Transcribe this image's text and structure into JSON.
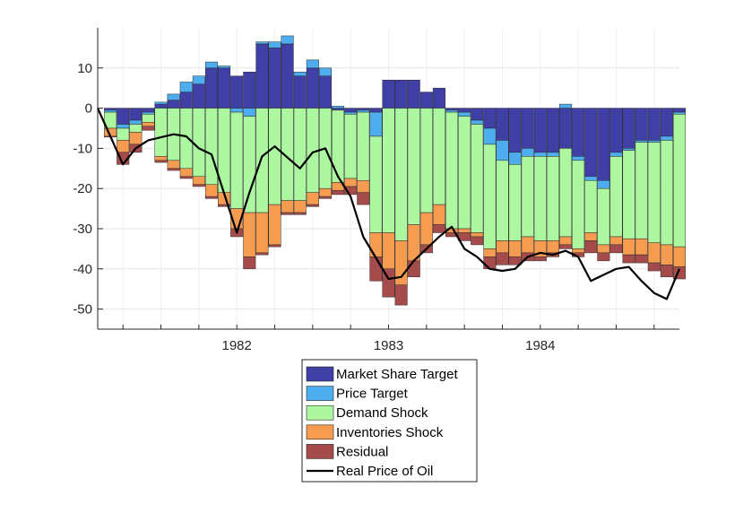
{
  "chart_data": {
    "type": "bar",
    "subtype": "stacked-with-line",
    "title": "",
    "xlabel": "",
    "ylabel": "",
    "ylim": [
      -55,
      20
    ],
    "yticks": [
      10,
      0,
      -10,
      -20,
      -30,
      -40,
      -50
    ],
    "ytick_labels": [
      "10",
      "0",
      "-10",
      "-20",
      "-30",
      "-40",
      "-50"
    ],
    "x_start": "1981-02",
    "x_end": "1984-12",
    "xticks": [
      {
        "label": "1982",
        "date": "1982-01"
      },
      {
        "label": "1983",
        "date": "1983-01"
      },
      {
        "label": "1984",
        "date": "1984-01"
      }
    ],
    "grid": true,
    "legend_position": "below",
    "dates": [
      "1981-03",
      "1981-04",
      "1981-05",
      "1981-06",
      "1981-07",
      "1981-08",
      "1981-09",
      "1981-10",
      "1981-11",
      "1981-12",
      "1982-01",
      "1982-02",
      "1982-03",
      "1982-04",
      "1982-05",
      "1982-06",
      "1982-07",
      "1982-08",
      "1982-09",
      "1982-10",
      "1982-11",
      "1982-12",
      "1983-01",
      "1983-02",
      "1983-03",
      "1983-04",
      "1983-05",
      "1983-06",
      "1983-07",
      "1983-08",
      "1983-09",
      "1983-10",
      "1983-11",
      "1983-12",
      "1984-01",
      "1984-02",
      "1984-03",
      "1984-04",
      "1984-05",
      "1984-06",
      "1984-07",
      "1984-08",
      "1984-09",
      "1984-10",
      "1984-11",
      "1984-12"
    ],
    "series": [
      {
        "name": "Market Share Target",
        "color": "#3f3fa6",
        "values": [
          -0.5,
          -4,
          -3,
          -1,
          1,
          2,
          4,
          6,
          10,
          10,
          8,
          9,
          16,
          15,
          16,
          8,
          10,
          8,
          -0.5,
          -1,
          -0.5,
          -1,
          7,
          7,
          7,
          4,
          5,
          -0.5,
          -1,
          -3,
          -5,
          -8,
          -11,
          -10,
          -11,
          -11,
          -10,
          -12,
          -17,
          -18,
          -11,
          -10,
          -8,
          -8,
          -7,
          -1
        ]
      },
      {
        "name": "Price Target",
        "color": "#4dadee",
        "values": [
          -0.5,
          -1,
          -1,
          -0.5,
          0.5,
          1.5,
          2.5,
          2,
          1.5,
          0.5,
          -1,
          -2,
          0.5,
          1.5,
          2,
          1,
          2,
          2,
          0.5,
          -0.5,
          -0.5,
          -6,
          0,
          0,
          0,
          0,
          0,
          -0.5,
          -1,
          -1,
          -4,
          -5,
          -3,
          -2,
          -1,
          -1,
          1,
          -1,
          -1,
          -2,
          -1,
          -0.5,
          -0.5,
          -0.5,
          -1,
          -0.5
        ]
      },
      {
        "name": "Demand Shock",
        "color": "#adf7a1",
        "values": [
          -4,
          -3,
          -2,
          -2,
          -12,
          -13,
          -15,
          -17,
          -19,
          -21,
          -24,
          -24,
          -26,
          -24,
          -23,
          -23,
          -21,
          -20,
          -18,
          -16,
          -17,
          -24,
          -31,
          -33,
          -29,
          -26,
          -24,
          -29,
          -28,
          -27,
          -26,
          -20,
          -19,
          -20,
          -21,
          -21,
          -22,
          -22,
          -13,
          -14,
          -20,
          -22,
          -24,
          -25,
          -26,
          -33
        ]
      },
      {
        "name": "Inventories Shock",
        "color": "#f59c51",
        "values": [
          -2,
          -3,
          -3,
          -1,
          -1,
          -2,
          -2,
          -2,
          -3,
          -3,
          -5,
          -11,
          -10,
          -10,
          -3,
          -3,
          -3,
          -2,
          -2,
          -2,
          -3,
          -6,
          -9,
          -11,
          -9,
          -8,
          -5,
          -1,
          -1,
          -1,
          -2,
          -3,
          -4,
          -4,
          -4,
          -3,
          -2,
          -1,
          -2,
          -2,
          -2,
          -4,
          -4,
          -5,
          -5,
          -5
        ]
      },
      {
        "name": "Residual",
        "color": "#a64b4b",
        "values": [
          -0.2,
          -3,
          -2,
          -1,
          -0.5,
          -0.5,
          -0.5,
          -0.5,
          -0.5,
          -0.5,
          -2,
          -3,
          -0.5,
          -0.5,
          -0.5,
          -0.5,
          -0.5,
          -0.5,
          -1,
          -2,
          -3,
          -6,
          -7,
          -5,
          -4,
          -2,
          -2,
          -1,
          -2,
          -2,
          -3,
          -3,
          -2,
          -2,
          -1,
          -1,
          -1,
          -1,
          -3,
          -2,
          -2,
          -2,
          -2,
          -2,
          -3,
          -3
        ]
      }
    ],
    "line": {
      "name": "Real Price of Oil",
      "color": "#000000",
      "x": [
        "1981-02",
        "1981-04",
        "1981-05",
        "1981-06",
        "1981-08",
        "1981-09",
        "1981-10",
        "1981-11",
        "1982-01",
        "1982-02",
        "1982-03",
        "1982-04",
        "1982-06",
        "1982-07",
        "1982-08",
        "1982-09",
        "1982-10",
        "1982-11",
        "1983-01",
        "1983-02",
        "1983-03",
        "1983-05",
        "1983-06",
        "1983-07",
        "1983-08",
        "1983-09",
        "1983-10",
        "1983-11",
        "1983-12",
        "1984-01",
        "1984-02",
        "1984-03",
        "1984-04",
        "1984-05",
        "1984-06",
        "1984-07",
        "1984-08",
        "1984-09",
        "1984-10",
        "1984-11",
        "1984-12"
      ],
      "y": [
        0,
        -14,
        -10,
        -8,
        -6.5,
        -7,
        -10,
        -11.5,
        -31,
        -21,
        -12,
        -9.5,
        -15,
        -11,
        -10,
        -17,
        -22,
        -32,
        -42.5,
        -42,
        -38,
        -32,
        -29.5,
        -35,
        -37,
        -40,
        -40.5,
        -40,
        -37,
        -36,
        -36.5,
        -35.5,
        -37,
        -43,
        -41.5,
        -40,
        -39.5,
        -43,
        -46,
        -47.5,
        -40
      ]
    }
  },
  "legend": {
    "items": [
      {
        "label": "Market Share Target",
        "kind": "patch",
        "color": "#3f3fa6"
      },
      {
        "label": "Price Target",
        "kind": "patch",
        "color": "#4dadee"
      },
      {
        "label": "Demand Shock",
        "kind": "patch",
        "color": "#adf7a1"
      },
      {
        "label": "Inventories Shock",
        "kind": "patch",
        "color": "#f59c51"
      },
      {
        "label": "Residual",
        "kind": "patch",
        "color": "#a64b4b"
      },
      {
        "label": "Real Price of Oil",
        "kind": "line",
        "color": "#000000"
      }
    ]
  }
}
